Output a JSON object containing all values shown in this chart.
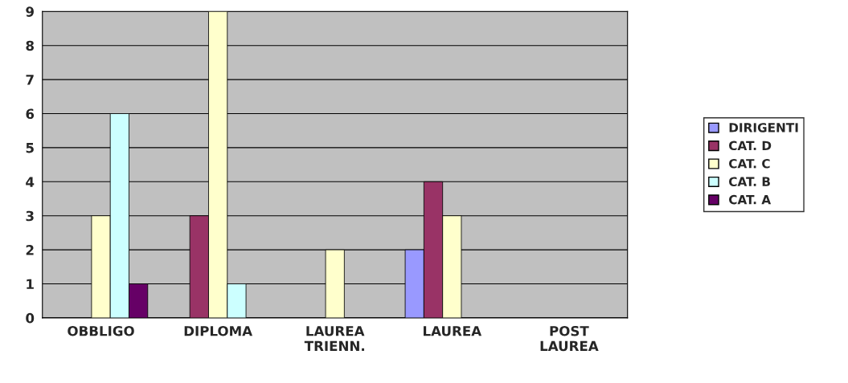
{
  "chart_data": {
    "type": "bar",
    "categories": [
      "OBBLIGO",
      "DIPLOMA",
      "LAUREA\nTRIENN.",
      "LAUREA",
      "POST\nLAUREA"
    ],
    "series": [
      {
        "name": "DIRIGENTI",
        "color": "#9999ff",
        "values": [
          0,
          0,
          0,
          2,
          0
        ]
      },
      {
        "name": "CAT. D",
        "color": "#993366",
        "values": [
          0,
          3,
          0,
          4,
          0
        ]
      },
      {
        "name": "CAT. C",
        "color": "#ffffcc",
        "values": [
          3,
          9,
          2,
          3,
          0
        ]
      },
      {
        "name": "CAT. B",
        "color": "#ccffff",
        "values": [
          6,
          1,
          0,
          0,
          0
        ]
      },
      {
        "name": "CAT. A",
        "color": "#660066",
        "values": [
          1,
          0,
          0,
          0,
          0
        ]
      }
    ],
    "ylim": [
      0,
      9
    ],
    "yticks": [
      0,
      1,
      2,
      3,
      4,
      5,
      6,
      7,
      8,
      9
    ],
    "grid": "y",
    "legend": "right"
  }
}
